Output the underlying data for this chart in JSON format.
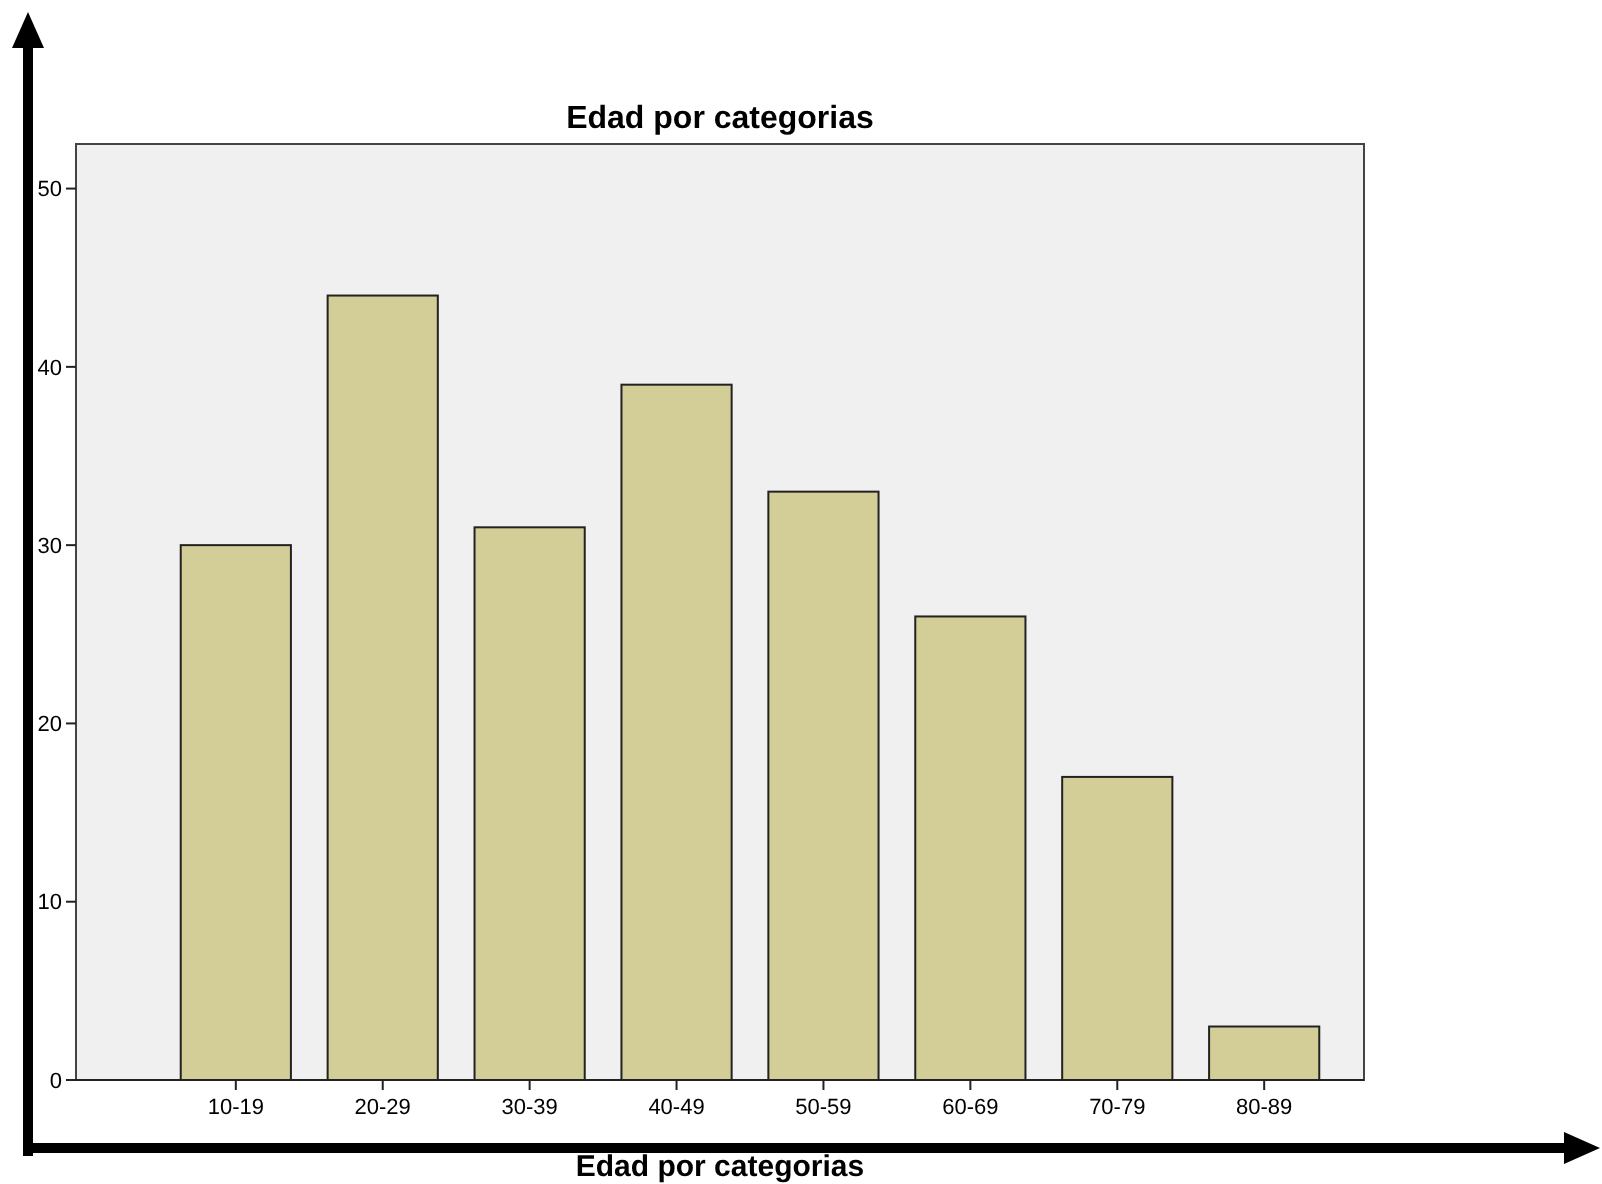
{
  "chart_data": {
    "type": "bar",
    "title": "Edad por categorias",
    "xlabel": "Edad por categorias",
    "categories": [
      "10-19",
      "20-29",
      "30-39",
      "40-49",
      "50-59",
      "60-69",
      "70-79",
      "80-89"
    ],
    "values": [
      30,
      44,
      31,
      39,
      33,
      26,
      17,
      3
    ],
    "color": "#d3ce97",
    "ylim": [
      0,
      52.5
    ],
    "yticks": [
      0,
      10,
      20,
      30,
      40,
      50
    ],
    "grid": false
  }
}
